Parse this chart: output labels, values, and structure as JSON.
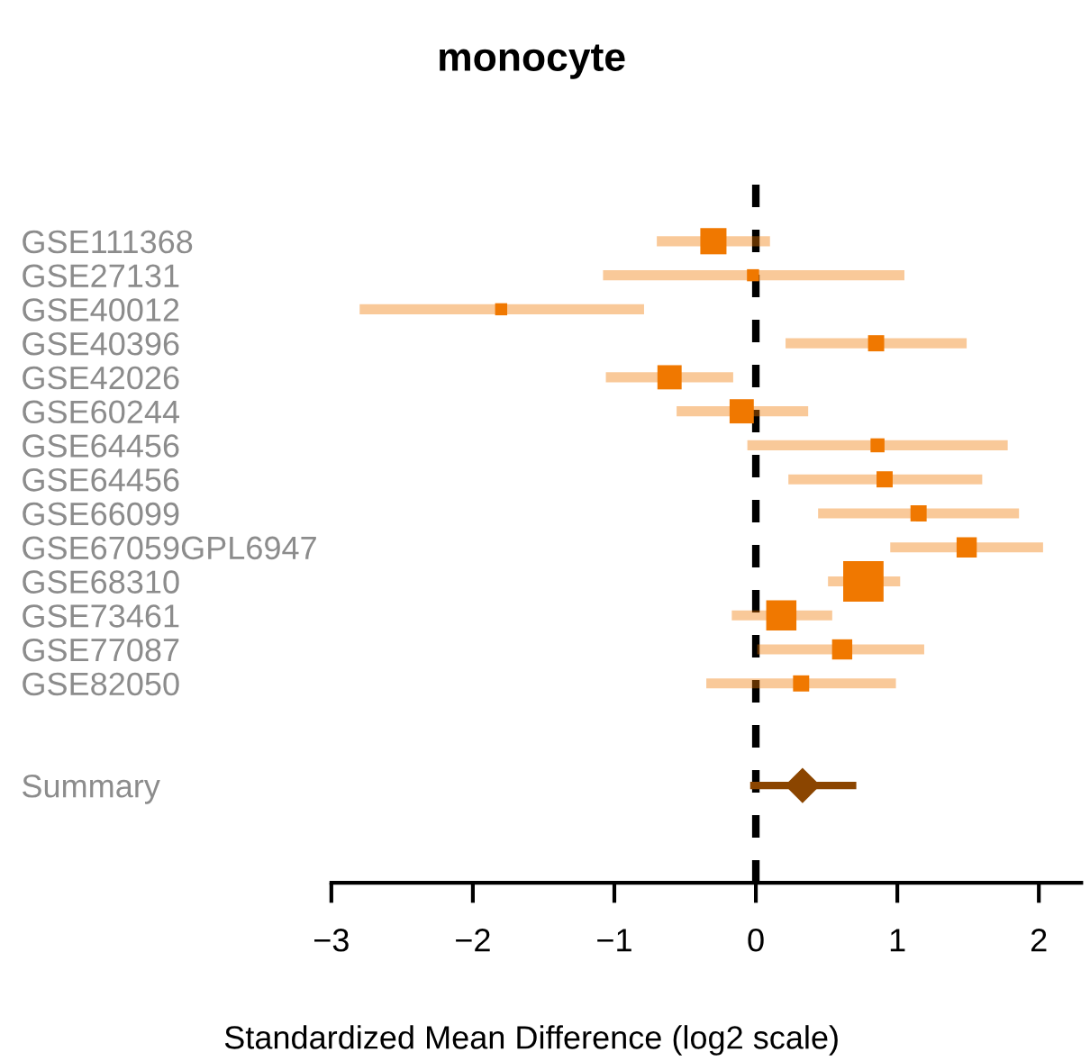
{
  "chart_data": {
    "type": "bubble",
    "title": "monocyte",
    "xlabel": "Standardized Mean Difference (log2 scale)",
    "orientation": "horizontal",
    "categories": [
      "GSE111368",
      "GSE27131",
      "GSE40012",
      "GSE40396",
      "GSE42026",
      "GSE60244",
      "GSE64456",
      "GSE64456",
      "GSE66099",
      "GSE67059GPL6947",
      "GSE68310",
      "GSE73461",
      "GSE77087",
      "GSE82050",
      null,
      null,
      "Summary"
    ],
    "series": [
      {
        "color": "#f07800",
        "marker": "square",
        "values": [
          -0.3,
          -0.02,
          -1.8,
          0.85,
          -0.61,
          -0.1,
          0.86,
          0.91,
          1.15,
          1.49,
          0.76,
          0.18,
          0.61,
          0.32,
          null,
          null,
          null
        ],
        "sizes": [
          0.42,
          0.09,
          0.09,
          0.16,
          0.36,
          0.36,
          0.12,
          0.16,
          0.16,
          0.25,
          1,
          0.56,
          0.25,
          0.16,
          null,
          null,
          null
        ],
        "errors": [
          [
            -0.7,
            0.1
          ],
          [
            -1.08,
            1.05
          ],
          [
            -2.8,
            -0.79
          ],
          [
            0.21,
            1.49
          ],
          [
            -1.06,
            -0.16
          ],
          [
            -0.56,
            0.37
          ],
          [
            -0.06,
            1.78
          ],
          [
            0.23,
            1.6
          ],
          [
            0.44,
            1.86
          ],
          [
            0.95,
            2.03
          ],
          [
            0.51,
            1.02
          ],
          [
            -0.17,
            0.54
          ],
          [
            0.01,
            1.19
          ],
          [
            -0.35,
            0.99
          ],
          null,
          null,
          null
        ]
      },
      {
        "type": "scatter",
        "color": "#8b4500",
        "marker": "diamond",
        "values": [
          null,
          null,
          null,
          null,
          null,
          null,
          null,
          null,
          null,
          null,
          null,
          null,
          null,
          null,
          null,
          null,
          0.33
        ],
        "errors": [
          null,
          null,
          null,
          null,
          null,
          null,
          null,
          null,
          null,
          null,
          null,
          null,
          null,
          null,
          null,
          null,
          [
            -0.04,
            0.71
          ]
        ]
      }
    ],
    "xlim": [
      -3.0,
      2.3
    ],
    "xticks": [
      -3,
      -2,
      -1,
      0,
      1,
      2
    ],
    "ref_lines": [
      {
        "axis": "x",
        "value": 0,
        "label": null,
        "color": "#000000",
        "line_style": "dashed"
      }
    ],
    "grid": false,
    "legend": false
  }
}
